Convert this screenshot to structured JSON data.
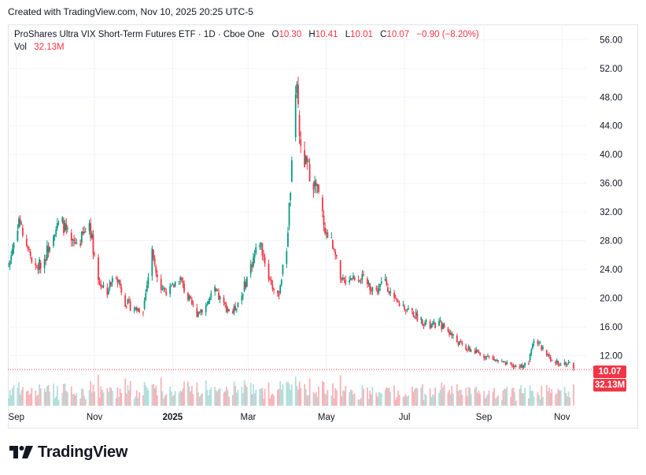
{
  "created_text": "Created with TradingView.com, Nov 10, 2025 20:25 UTC-5",
  "legend": {
    "title": "ProShares Ultra VIX Short-Term Futures ETF · 1D · Cboe One",
    "open_label": "O",
    "open": "10.30",
    "high_label": "H",
    "high": "10.41",
    "low_label": "L",
    "low": "10.01",
    "close_label": "C",
    "close": "10.07",
    "change": "−0.90 (−8.20%)",
    "vol_label": "Vol",
    "vol": "32.13M"
  },
  "last_price_tag": "10.07",
  "last_volume_tag": "32.13M",
  "brand": "TradingView",
  "colors": {
    "up": "#089981",
    "down": "#f23645",
    "up_vol": "#b2dfdb",
    "down_vol": "#f7b4b9",
    "grid": "#f0f3fa",
    "axis_text": "#131722"
  },
  "chart_data": {
    "type": "candlestick",
    "title": "ProShares Ultra VIX Short-Term Futures ETF",
    "interval": "1D",
    "y_axis_ticks": [
      "56.00",
      "52.00",
      "48.00",
      "44.00",
      "40.00",
      "36.00",
      "32.00",
      "28.00",
      "24.00",
      "20.00",
      "16.00",
      "12.00"
    ],
    "x_axis_ticks": [
      "Sep",
      "Nov",
      "2025",
      "Mar",
      "May",
      "Jul",
      "Sep",
      "Nov"
    ],
    "ylim": [
      8,
      58
    ],
    "grid": true,
    "anchor_closes": [
      [
        "2024-08-26",
        24.5
      ],
      [
        "2024-09-03",
        31.0
      ],
      [
        "2024-09-09",
        27.5
      ],
      [
        "2024-09-16",
        24.0
      ],
      [
        "2024-09-23",
        25.5
      ],
      [
        "2024-09-30",
        29.5
      ],
      [
        "2024-10-07",
        30.5
      ],
      [
        "2024-10-14",
        27.5
      ],
      [
        "2024-10-21",
        28.0
      ],
      [
        "2024-10-28",
        30.5
      ],
      [
        "2024-11-04",
        22.5
      ],
      [
        "2024-11-11",
        21.0
      ],
      [
        "2024-11-18",
        23.5
      ],
      [
        "2024-11-25",
        19.5
      ],
      [
        "2024-12-02",
        18.5
      ],
      [
        "2024-12-09",
        18.5
      ],
      [
        "2024-12-16",
        26.5
      ],
      [
        "2024-12-23",
        21.5
      ],
      [
        "2024-12-30",
        21.0
      ],
      [
        "2025-01-06",
        23.0
      ],
      [
        "2025-01-13",
        20.0
      ],
      [
        "2025-01-20",
        18.0
      ],
      [
        "2025-01-27",
        19.0
      ],
      [
        "2025-02-03",
        21.0
      ],
      [
        "2025-02-10",
        19.0
      ],
      [
        "2025-02-17",
        18.0
      ],
      [
        "2025-02-24",
        20.5
      ],
      [
        "2025-03-03",
        24.5
      ],
      [
        "2025-03-10",
        28.0
      ],
      [
        "2025-03-17",
        23.0
      ],
      [
        "2025-03-24",
        20.0
      ],
      [
        "2025-03-31",
        27.0
      ],
      [
        "2025-04-04",
        38.0
      ],
      [
        "2025-04-08",
        50.0
      ],
      [
        "2025-04-11",
        40.0
      ],
      [
        "2025-04-17",
        38.0
      ],
      [
        "2025-04-24",
        35.0
      ],
      [
        "2025-05-01",
        29.0
      ],
      [
        "2025-05-08",
        27.0
      ],
      [
        "2025-05-12",
        22.0
      ],
      [
        "2025-05-19",
        23.0
      ],
      [
        "2025-05-27",
        23.0
      ],
      [
        "2025-06-02",
        22.0
      ],
      [
        "2025-06-09",
        21.0
      ],
      [
        "2025-06-16",
        22.5
      ],
      [
        "2025-06-23",
        19.5
      ],
      [
        "2025-06-30",
        19.0
      ],
      [
        "2025-07-07",
        18.0
      ],
      [
        "2025-07-14",
        17.0
      ],
      [
        "2025-07-21",
        16.0
      ],
      [
        "2025-07-28",
        16.5
      ],
      [
        "2025-08-04",
        15.5
      ],
      [
        "2025-08-11",
        14.0
      ],
      [
        "2025-08-18",
        13.0
      ],
      [
        "2025-08-25",
        12.5
      ],
      [
        "2025-09-02",
        12.0
      ],
      [
        "2025-09-08",
        11.5
      ],
      [
        "2025-09-15",
        11.0
      ],
      [
        "2025-09-22",
        10.5
      ],
      [
        "2025-09-29",
        10.5
      ],
      [
        "2025-10-06",
        11.0
      ],
      [
        "2025-10-10",
        14.5
      ],
      [
        "2025-10-17",
        13.0
      ],
      [
        "2025-10-24",
        11.0
      ],
      [
        "2025-10-31",
        11.0
      ],
      [
        "2025-11-07",
        11.0
      ],
      [
        "2025-11-10",
        10.07
      ]
    ]
  }
}
